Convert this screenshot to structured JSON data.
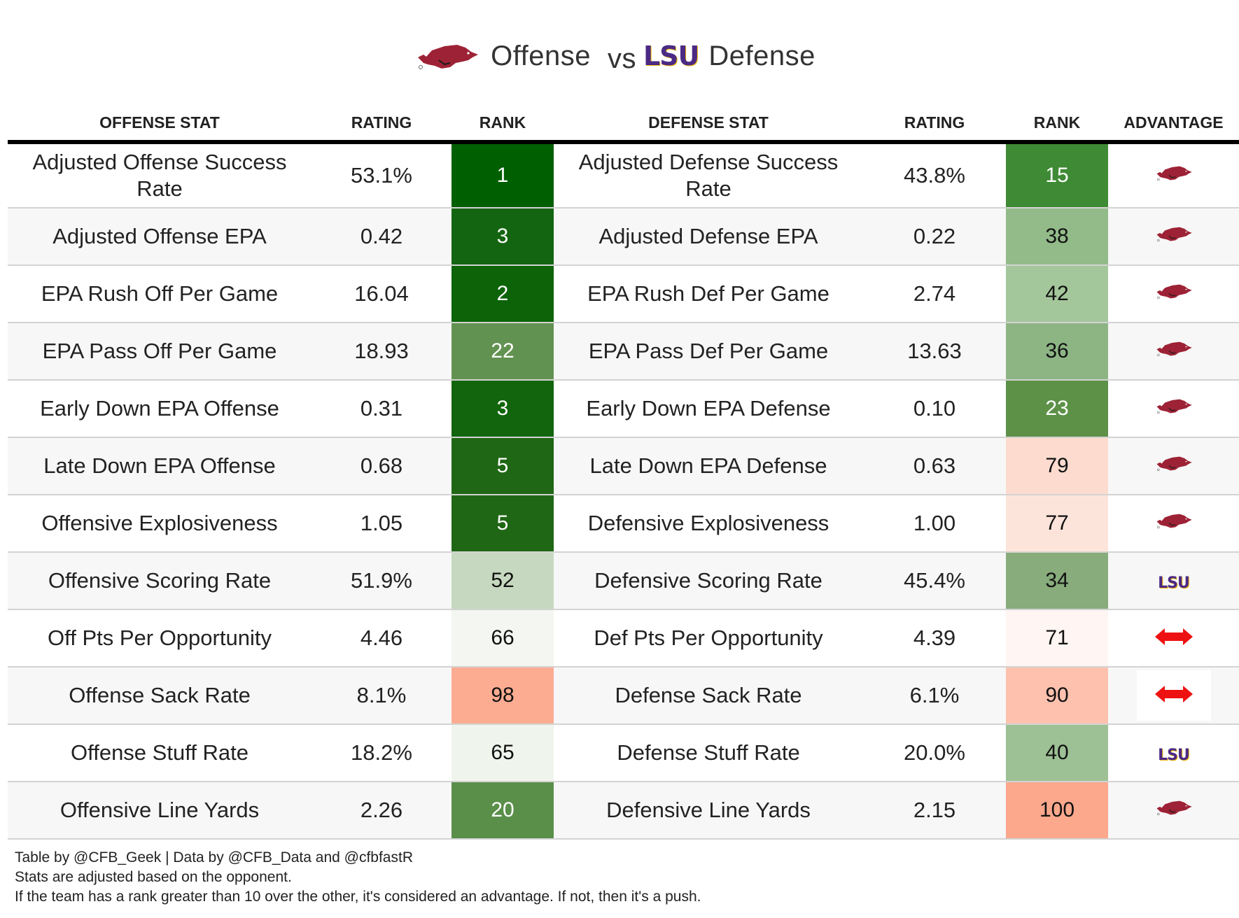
{
  "title": {
    "offense_team_icon": "arkansas-razorback-logo",
    "offense_label": "Offense",
    "vs_label": "vs",
    "defense_team_logo_text": "LSU",
    "defense_label": "Defense"
  },
  "columns": [
    "OFFENSE STAT",
    "RATING",
    "RANK",
    "DEFENSE STAT",
    "RATING",
    "RANK",
    "ADVANTAGE"
  ],
  "colors": {
    "arkansas_red": "#9d2235",
    "lsu_purple": "#461d7c",
    "lsu_gold": "#fdd023",
    "push_arrow_red": "#ee1111"
  },
  "rows": [
    {
      "off_stat": "Adjusted Offense Success Rate",
      "off_rating": "53.1%",
      "off_rank": "1",
      "off_rank_color": "#005f00",
      "off_rank_text": "#ffffff",
      "def_stat": "Adjusted Defense Success Rate",
      "def_rating": "43.8%",
      "def_rank": "15",
      "def_rank_color": "#3f8a34",
      "def_rank_text": "#ffffff",
      "advantage": "arkansas"
    },
    {
      "off_stat": "Adjusted Offense EPA",
      "off_rating": "0.42",
      "off_rank": "3",
      "off_rank_color": "#146511",
      "off_rank_text": "#ffffff",
      "def_stat": "Adjusted Defense EPA",
      "def_rating": "0.22",
      "def_rank": "38",
      "def_rank_color": "#93bb89",
      "def_rank_text": "#111111",
      "advantage": "arkansas"
    },
    {
      "off_stat": "EPA Rush Off Per Game",
      "off_rating": "16.04",
      "off_rank": "2",
      "off_rank_color": "#0c6308",
      "off_rank_text": "#ffffff",
      "def_stat": "EPA Rush Def Per Game",
      "def_rating": "2.74",
      "def_rank": "42",
      "def_rank_color": "#a4c69b",
      "def_rank_text": "#111111",
      "advantage": "arkansas"
    },
    {
      "off_stat": "EPA Pass Off Per Game",
      "off_rating": "18.93",
      "off_rank": "22",
      "off_rank_color": "#629251",
      "off_rank_text": "#ffffff",
      "def_stat": "EPA Pass Def Per Game",
      "def_rating": "13.63",
      "def_rank": "36",
      "def_rank_color": "#8db584",
      "def_rank_text": "#111111",
      "advantage": "arkansas"
    },
    {
      "off_stat": "Early Down EPA Offense",
      "off_rating": "0.31",
      "off_rank": "3",
      "off_rank_color": "#12650c",
      "off_rank_text": "#ffffff",
      "def_stat": "Early Down EPA Defense",
      "def_rating": "0.10",
      "def_rank": "23",
      "def_rank_color": "#5c9147",
      "def_rank_text": "#ffffff",
      "advantage": "arkansas"
    },
    {
      "off_stat": "Late Down EPA Offense",
      "off_rating": "0.68",
      "off_rank": "5",
      "off_rank_color": "#1f6714",
      "off_rank_text": "#ffffff",
      "def_stat": "Late Down EPA Defense",
      "def_rating": "0.63",
      "def_rank": "79",
      "def_rank_color": "#fddccf",
      "def_rank_text": "#111111",
      "advantage": "arkansas"
    },
    {
      "off_stat": "Offensive Explosiveness",
      "off_rating": "1.05",
      "off_rank": "5",
      "off_rank_color": "#1f6714",
      "off_rank_text": "#ffffff",
      "def_stat": "Defensive Explosiveness",
      "def_rating": "1.00",
      "def_rank": "77",
      "def_rank_color": "#fde4da",
      "def_rank_text": "#111111",
      "advantage": "arkansas"
    },
    {
      "off_stat": "Offensive Scoring Rate",
      "off_rating": "51.9%",
      "off_rank": "52",
      "off_rank_color": "#c6d9c0",
      "off_rank_text": "#111111",
      "def_stat": "Defensive Scoring Rate",
      "def_rating": "45.4%",
      "def_rank": "34",
      "def_rank_color": "#88ac7b",
      "def_rank_text": "#111111",
      "advantage": "lsu"
    },
    {
      "off_stat": "Off Pts Per Opportunity",
      "off_rating": "4.46",
      "off_rank": "66",
      "off_rank_color": "#f3f6f1",
      "off_rank_text": "#111111",
      "def_stat": "Def Pts Per Opportunity",
      "def_rating": "4.39",
      "def_rank": "71",
      "def_rank_color": "#fff5f2",
      "def_rank_text": "#111111",
      "advantage": "push"
    },
    {
      "off_stat": "Offense Sack Rate",
      "off_rating": "8.1%",
      "off_rank": "98",
      "off_rank_color": "#fcac91",
      "off_rank_text": "#111111",
      "def_stat": "Defense Sack Rate",
      "def_rating": "6.1%",
      "def_rank": "90",
      "def_rank_color": "#fdc1ae",
      "def_rank_text": "#111111",
      "advantage": "push"
    },
    {
      "off_stat": "Offense Stuff Rate",
      "off_rating": "18.2%",
      "off_rank": "65",
      "off_rank_color": "#eff4ec",
      "off_rank_text": "#111111",
      "def_stat": "Defense Stuff Rate",
      "def_rating": "20.0%",
      "def_rank": "40",
      "def_rank_color": "#9dc094",
      "def_rank_text": "#111111",
      "advantage": "lsu"
    },
    {
      "off_stat": "Offensive Line Yards",
      "off_rating": "2.26",
      "off_rank": "20",
      "off_rank_color": "#5a8f4a",
      "off_rank_text": "#ffffff",
      "def_stat": "Defensive Line Yards",
      "def_rating": "2.15",
      "def_rank": "100",
      "def_rank_color": "#fba88d",
      "def_rank_text": "#111111",
      "advantage": "arkansas"
    }
  ],
  "footer": {
    "line1": "Table by @CFB_Geek | Data by @CFB_Data and @cfbfastR",
    "line2": "Stats are adjusted based on the opponent.",
    "line3": "If the team has a rank greater than 10 over the other, it's considered an advantage. If not, then it's a push."
  }
}
